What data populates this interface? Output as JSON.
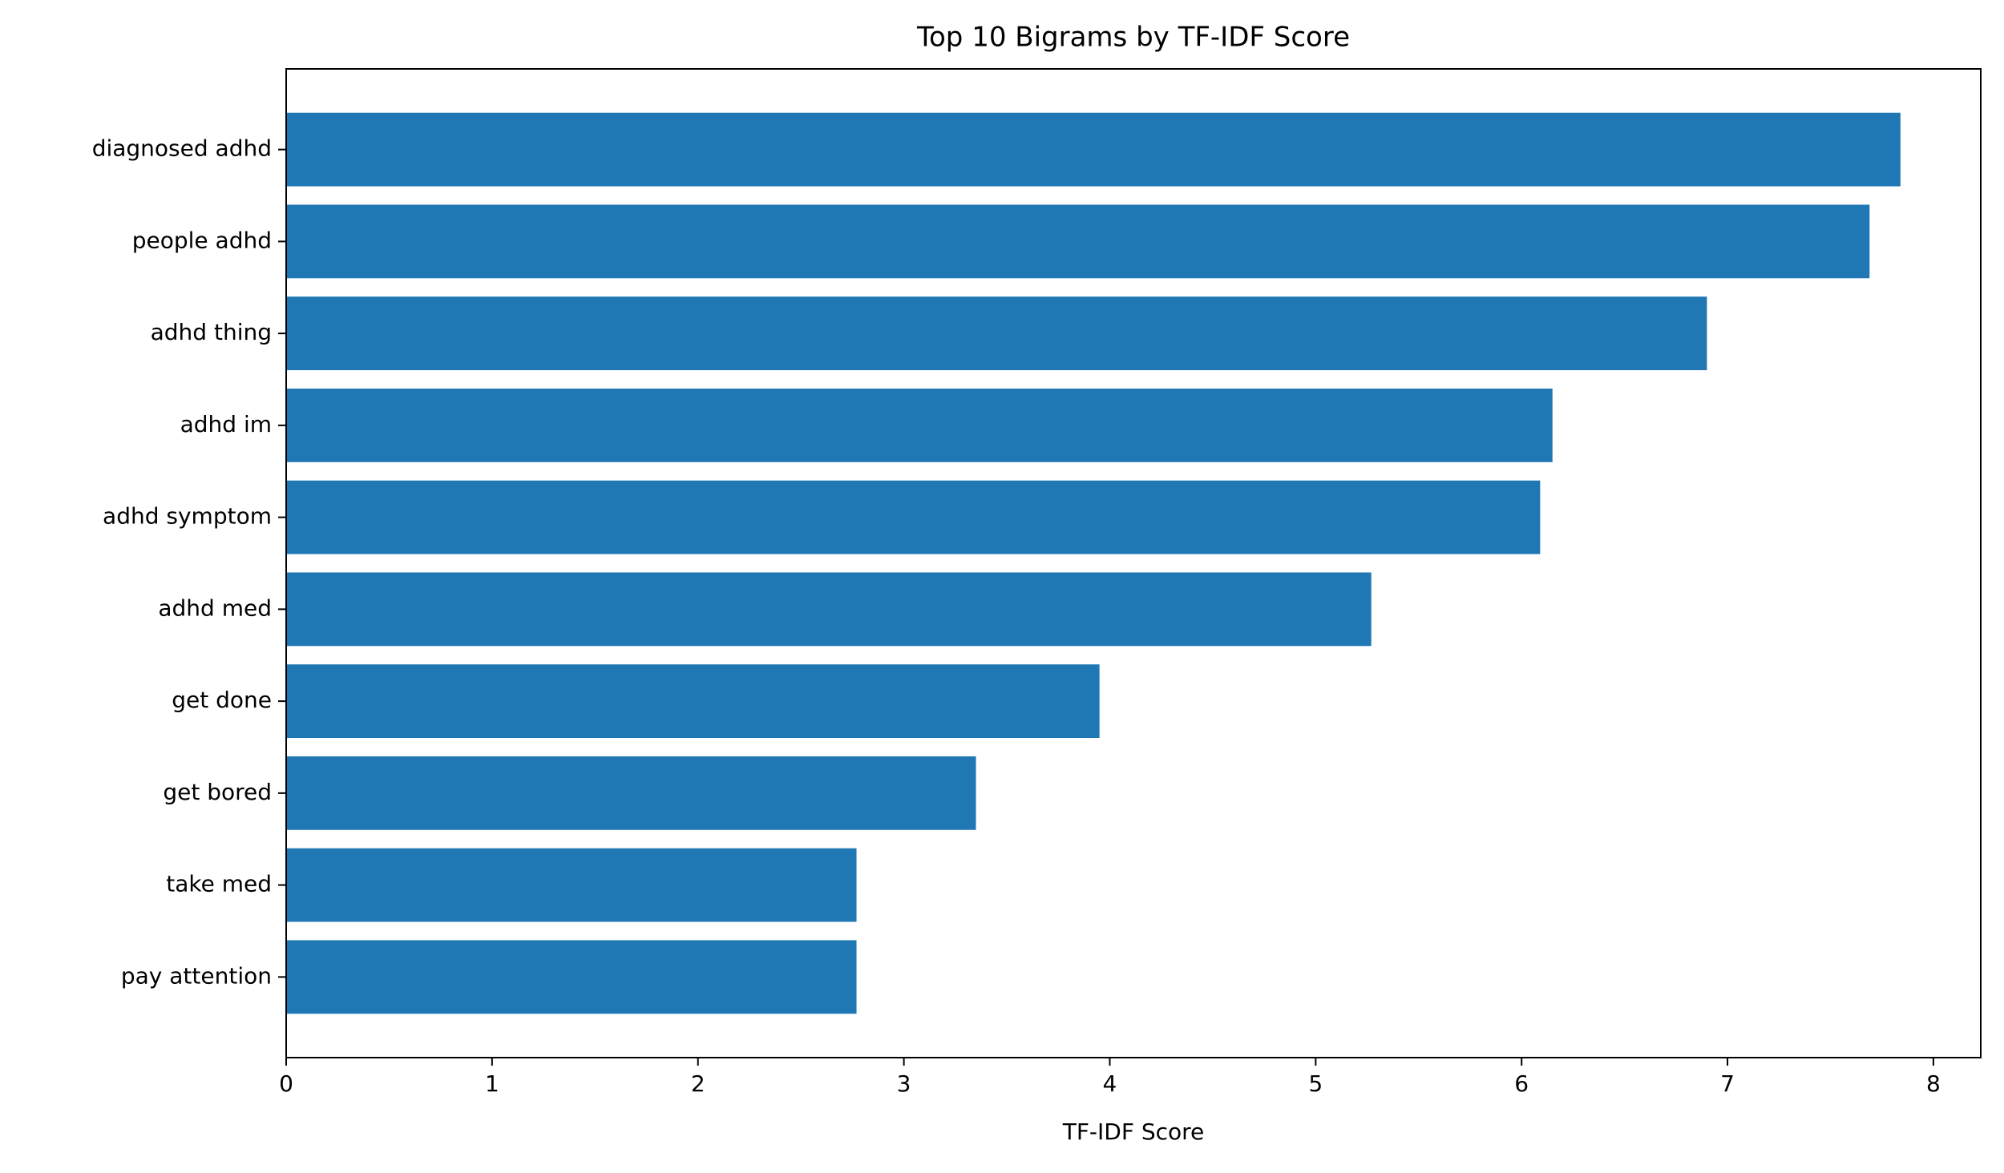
{
  "chart_data": {
    "type": "barh",
    "title": "Top 10 Bigrams by TF-IDF Score",
    "x_label": "TF-IDF Score",
    "categories": [
      "diagnosed adhd",
      "people adhd",
      "adhd thing",
      "adhd im",
      "adhd symptom",
      "adhd med",
      "get done",
      "get bored",
      "take med",
      "pay attention"
    ],
    "values": [
      7.84,
      7.69,
      6.9,
      6.15,
      6.09,
      5.27,
      3.95,
      3.35,
      2.77,
      2.77
    ],
    "color": "#1f77b4",
    "xlim": [
      0,
      8.23
    ],
    "xticks": [
      0,
      1,
      2,
      3,
      4,
      5,
      6,
      7,
      8
    ],
    "grid": false
  }
}
